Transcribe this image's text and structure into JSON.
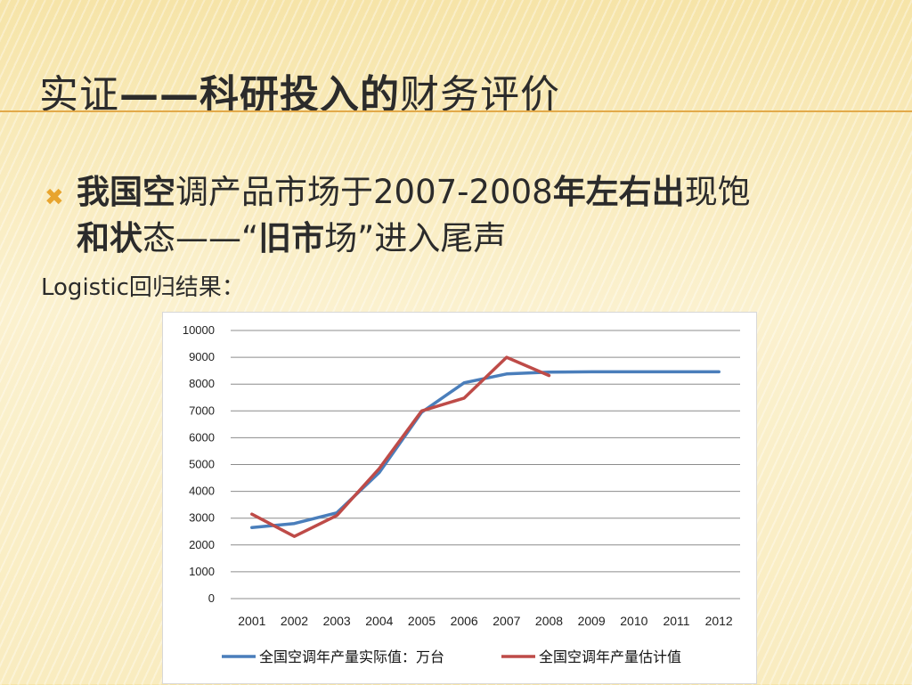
{
  "slide": {
    "title_part1": "实证",
    "title_part2": "——科研投入的",
    "title_part3": "财务评价",
    "bullet": {
      "p1": "我国空",
      "p2": "调产品市场于2007-2008",
      "p3": "年左右出",
      "p4": "现饱",
      "p5": "和状",
      "p6": "态——“",
      "p7": "旧市",
      "p8": "场”进入尾声"
    },
    "subtitle": "Logistic回归结果："
  },
  "colors": {
    "accent": "#e8a42e",
    "series_actual": "#4a7ebb",
    "series_estimate": "#be4b48"
  },
  "chart_data": {
    "type": "line",
    "categories": [
      "2001",
      "2002",
      "2003",
      "2004",
      "2005",
      "2006",
      "2007",
      "2008",
      "2009",
      "2010",
      "2011",
      "2012"
    ],
    "ylim": [
      0,
      10000
    ],
    "yticks": [
      0,
      1000,
      2000,
      3000,
      4000,
      5000,
      6000,
      7000,
      8000,
      9000,
      10000
    ],
    "grid": true,
    "legend": "bottom",
    "series": [
      {
        "name": "全国空调年产量实际值：万台",
        "color": "#4a7ebb",
        "values": [
          2650,
          2800,
          3200,
          4700,
          6950,
          8050,
          8380,
          8450,
          8460,
          8460,
          8460,
          8460
        ]
      },
      {
        "name": "全国空调年产量估计值",
        "color": "#be4b48",
        "values": [
          3150,
          2320,
          3100,
          4850,
          7000,
          7480,
          9000,
          8320,
          null,
          null,
          null,
          null
        ]
      }
    ]
  }
}
